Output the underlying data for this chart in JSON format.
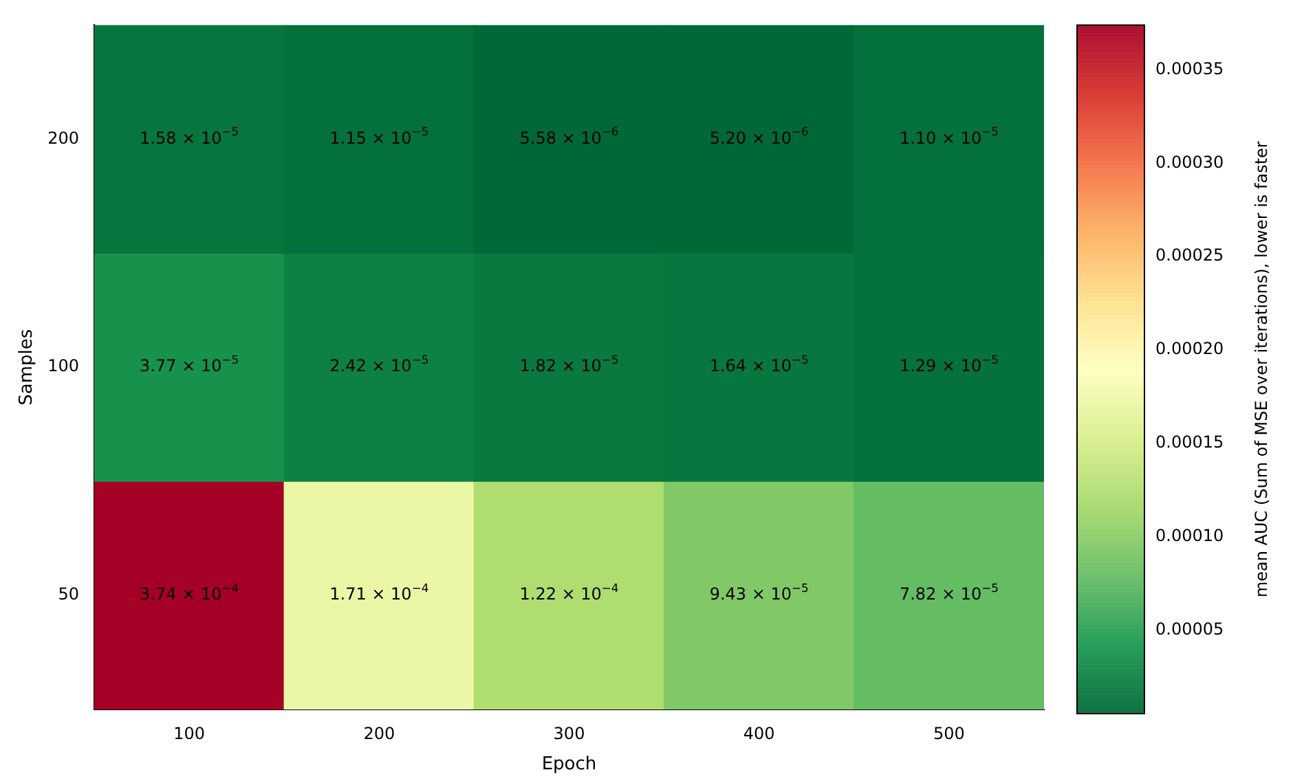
{
  "chart_data": {
    "type": "heatmap",
    "xlabel": "Epoch",
    "ylabel": "Samples",
    "clabel": "mean AUC (Sum of MSE over iterations), lower is faster",
    "categories": [
      "100",
      "200",
      "300",
      "400",
      "500"
    ],
    "y_categories": [
      "200",
      "100",
      "50"
    ],
    "cells": [
      [
        1.58e-05,
        1.15e-05,
        5.58e-06,
        5.2e-06,
        1.1e-05
      ],
      [
        3.77e-05,
        2.42e-05,
        1.82e-05,
        1.64e-05,
        1.29e-05
      ],
      [
        0.000374,
        0.000171,
        0.000122,
        9.43e-05,
        7.82e-05
      ]
    ],
    "cell_labels": [
      [
        "1.58 × 10$^{−5}$",
        "1.15 × 10$^{−5}$",
        "5.58 × 10$^{−6}$",
        "5.20 × 10$^{−6}$",
        "1.10 × 10$^{−5}$"
      ],
      [
        "3.77 × 10$^{−5}$",
        "2.42 × 10$^{−5}$",
        "1.82 × 10$^{−5}$",
        "1.64 × 10$^{−5}$",
        "1.29 × 10$^{−5}$"
      ],
      [
        "3.74 × 10$^{−4}$",
        "1.71 × 10$^{−4}$",
        "1.22 × 10$^{−4}$",
        "9.43 × 10$^{−5}$",
        "7.82 × 10$^{−5}$"
      ]
    ],
    "clim": [
      5.2e-06,
      0.000374
    ],
    "cticks": [
      {
        "value": 5e-05,
        "label": "0.00005"
      },
      {
        "value": 0.0001,
        "label": "0.00010"
      },
      {
        "value": 0.00015,
        "label": "0.00015"
      },
      {
        "value": 0.0002,
        "label": "0.00020"
      },
      {
        "value": 0.00025,
        "label": "0.00025"
      },
      {
        "value": 0.0003,
        "label": "0.00030"
      },
      {
        "value": 0.00035,
        "label": "0.00035"
      }
    ]
  }
}
